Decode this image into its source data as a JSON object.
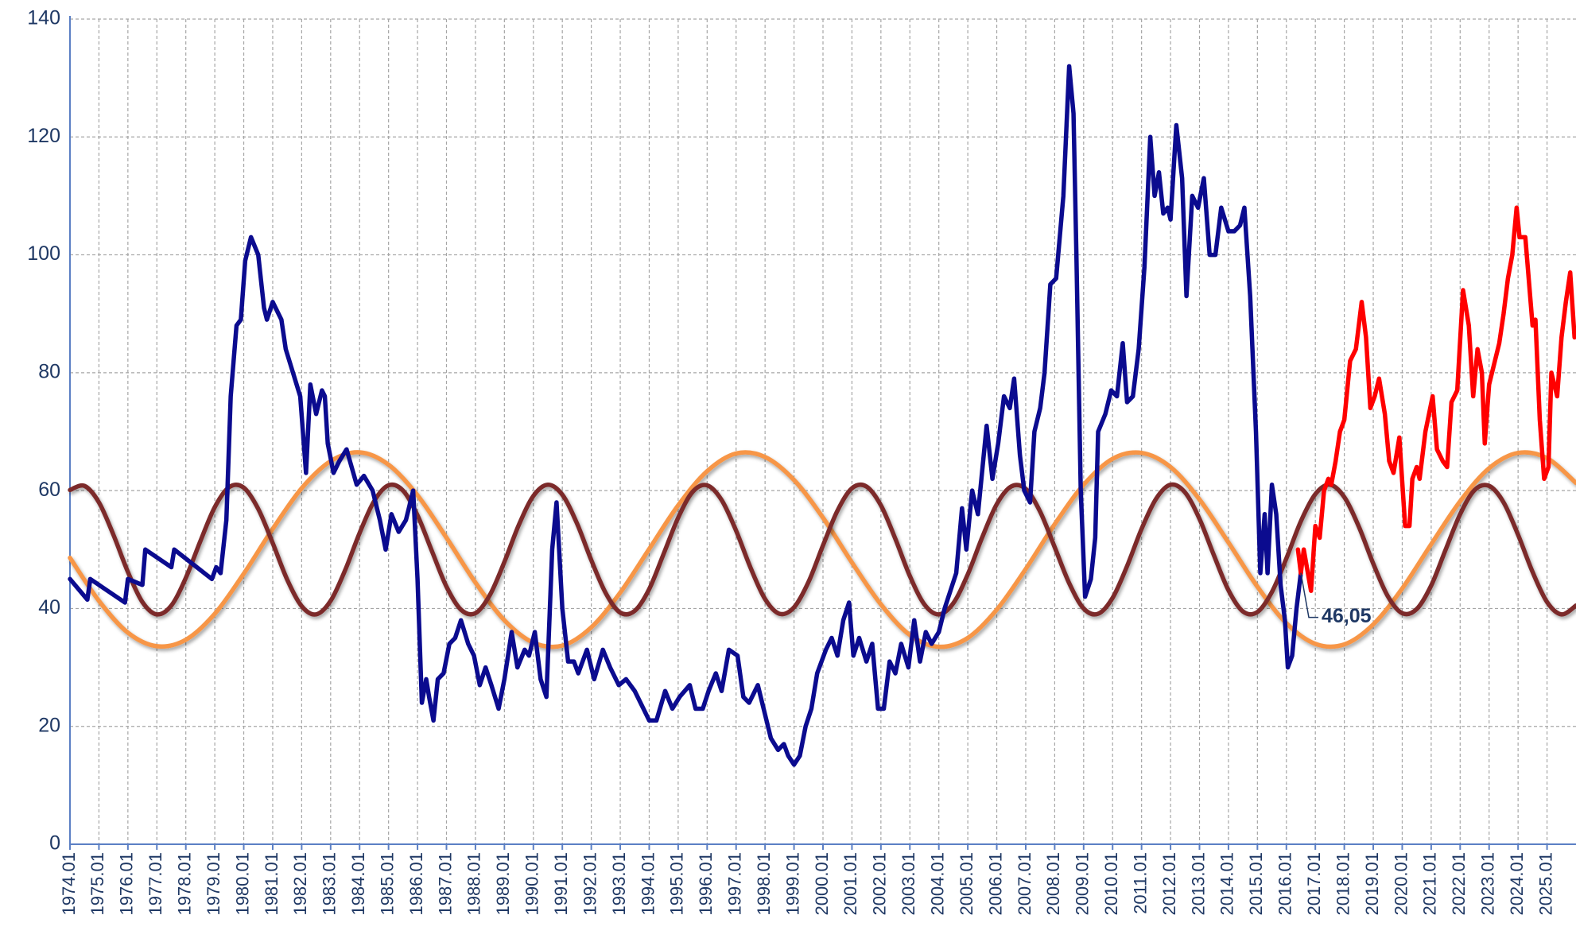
{
  "chart_data": {
    "type": "line",
    "xlim": [
      1974,
      2026
    ],
    "xticks": [
      {
        "value": 1974,
        "label": "1974.01"
      },
      {
        "value": 1975,
        "label": "1975.01"
      },
      {
        "value": 1976,
        "label": "1976.01"
      },
      {
        "value": 1977,
        "label": "1977.01"
      },
      {
        "value": 1978,
        "label": "1978.01"
      },
      {
        "value": 1979,
        "label": "1979.01"
      },
      {
        "value": 1980,
        "label": "1980.01"
      },
      {
        "value": 1981,
        "label": "1981.01"
      },
      {
        "value": 1982,
        "label": "1982.01"
      },
      {
        "value": 1983,
        "label": "1983.01"
      },
      {
        "value": 1984,
        "label": "1984.01"
      },
      {
        "value": 1985,
        "label": "1985.01"
      },
      {
        "value": 1986,
        "label": "1986.01"
      },
      {
        "value": 1987,
        "label": "1987.01"
      },
      {
        "value": 1988,
        "label": "1988.01"
      },
      {
        "value": 1989,
        "label": "1989.01"
      },
      {
        "value": 1990,
        "label": "1990.01"
      },
      {
        "value": 1991,
        "label": "1991.01"
      },
      {
        "value": 1992,
        "label": "1992.01"
      },
      {
        "value": 1993,
        "label": "1993.01"
      },
      {
        "value": 1994,
        "label": "1994.01"
      },
      {
        "value": 1995,
        "label": "1995.01"
      },
      {
        "value": 1996,
        "label": "1996.01"
      },
      {
        "value": 1997,
        "label": "1997.01"
      },
      {
        "value": 1998,
        "label": "1998.01"
      },
      {
        "value": 1999,
        "label": "1999.01"
      },
      {
        "value": 2000,
        "label": "2000.01"
      },
      {
        "value": 2001,
        "label": "2001.01"
      },
      {
        "value": 2002,
        "label": "2002.01"
      },
      {
        "value": 2003,
        "label": "2003.01"
      },
      {
        "value": 2004,
        "label": "2004.01"
      },
      {
        "value": 2005,
        "label": "2005.01"
      },
      {
        "value": 2006,
        "label": "2006.01"
      },
      {
        "value": 2007,
        "label": "2007.01"
      },
      {
        "value": 2008,
        "label": "2008.01"
      },
      {
        "value": 2009,
        "label": "2009.01"
      },
      {
        "value": 2010,
        "label": "2010.01"
      },
      {
        "value": 2011,
        "label": "2011.01"
      },
      {
        "value": 2012,
        "label": "2012.01"
      },
      {
        "value": 2013,
        "label": "2013.01"
      },
      {
        "value": 2014,
        "label": "2014.01"
      },
      {
        "value": 2015,
        "label": "2015.01"
      },
      {
        "value": 2016,
        "label": "2016.01"
      },
      {
        "value": 2017,
        "label": "2017.01"
      },
      {
        "value": 2018,
        "label": "2018.01"
      },
      {
        "value": 2019,
        "label": "2019.01"
      },
      {
        "value": 2020,
        "label": "2020.01"
      },
      {
        "value": 2021,
        "label": "2021.01"
      },
      {
        "value": 2022,
        "label": "2022.01"
      },
      {
        "value": 2023,
        "label": "2023.01"
      },
      {
        "value": 2024,
        "label": "2024.01"
      },
      {
        "value": 2025,
        "label": "2025.01"
      }
    ],
    "ylim": [
      0,
      140
    ],
    "yticks": [
      0,
      20,
      40,
      60,
      80,
      100,
      120,
      140
    ],
    "grid": true,
    "series": [
      {
        "color": "#f79646",
        "smooth": true,
        "x": [
          1974,
          1975,
          1976,
          1977,
          1978,
          1979,
          1980,
          1981,
          1982,
          1983,
          1984,
          1985,
          1986,
          1987,
          1988,
          1989,
          1990,
          1991,
          1992,
          1993,
          1994,
          1995,
          1996,
          1997,
          1998,
          1999,
          2000,
          2001,
          2002,
          2003,
          2004,
          2005,
          2006,
          2007,
          2008,
          2009,
          2010,
          2011,
          2012,
          2013,
          2014,
          2015,
          2016,
          2017,
          2018,
          2019,
          2020,
          2021,
          2022,
          2023,
          2024,
          2025,
          2026
        ],
        "values": [
          48.6,
          41.3,
          35.9,
          33.6,
          34.7,
          39.1,
          45.9,
          53.5,
          60.4,
          65.0,
          66.5,
          64.4,
          59.2,
          52.0,
          44.4,
          38.0,
          34.2,
          33.7,
          36.8,
          42.7,
          50.1,
          57.5,
          63.3,
          66.3,
          65.7,
          61.8,
          55.4,
          47.8,
          40.7,
          35.5,
          33.5,
          35.0,
          39.8,
          46.7,
          54.3,
          61.0,
          65.4,
          66.4,
          64.0,
          58.5,
          51.2,
          43.7,
          37.5,
          34.0,
          33.9,
          37.3,
          43.4,
          50.9,
          58.2,
          63.8,
          66.4,
          65.5,
          61.3
        ]
      },
      {
        "color": "#7b2c2c",
        "smooth": true,
        "x": [
          1974,
          1974.5,
          1975,
          1975.5,
          1976,
          1976.5,
          1977,
          1977.5,
          1978,
          1978.5,
          1979,
          1979.5,
          1980,
          1980.5,
          1981,
          1981.5,
          1982,
          1982.5,
          1983,
          1983.5,
          1984,
          1984.5,
          1985,
          1985.5,
          1986,
          1986.5,
          1987,
          1987.5,
          1988,
          1988.5,
          1989,
          1989.5,
          1990,
          1990.5,
          1991,
          1991.5,
          1992,
          1992.5,
          1993,
          1993.5,
          1994,
          1994.5,
          1995,
          1995.5,
          1996,
          1996.5,
          1997,
          1997.5,
          1998,
          1998.5,
          1999,
          1999.5,
          2000,
          2000.5,
          2001,
          2001.5,
          2002,
          2002.5,
          2003,
          2003.5,
          2004,
          2004.5,
          2005,
          2005.5,
          2006,
          2006.5,
          2007,
          2007.5,
          2008,
          2008.5,
          2009,
          2009.5,
          2010,
          2010.5,
          2011,
          2011.5,
          2012,
          2012.5,
          2013,
          2013.5,
          2014,
          2014.5,
          2015,
          2015.5,
          2016,
          2016.5,
          2017,
          2017.5,
          2018,
          2018.5,
          2019,
          2019.5,
          2020,
          2020.5,
          2021,
          2021.5,
          2022,
          2022.5,
          2023,
          2023.5,
          2024,
          2024.5,
          2025,
          2025.5,
          2026
        ],
        "values": [
          60.1,
          60.8,
          58.0,
          52.5,
          46.2,
          41.1,
          39.0,
          40.5,
          45.2,
          51.4,
          57.2,
          60.6,
          60.5,
          56.9,
          51.1,
          44.9,
          40.4,
          39.0,
          41.3,
          46.5,
          52.8,
          58.2,
          60.9,
          60.0,
          55.8,
          49.7,
          43.7,
          39.8,
          39.2,
          42.3,
          47.9,
          54.2,
          59.1,
          61.0,
          59.3,
          54.5,
          48.2,
          42.6,
          39.3,
          39.6,
          43.3,
          49.3,
          55.4,
          59.8,
          60.9,
          58.4,
          53.2,
          46.9,
          41.6,
          39.1,
          40.2,
          44.5,
          50.7,
          56.6,
          60.4,
          60.7,
          57.5,
          51.8,
          45.5,
          40.7,
          39.0,
          40.9,
          45.8,
          52.1,
          57.7,
          60.7,
          60.3,
          56.4,
          50.4,
          44.3,
          40.0,
          39.1,
          41.8,
          47.2,
          53.5,
          58.6,
          61.0,
          59.7,
          55.2,
          49.0,
          43.1,
          39.5,
          39.4,
          42.8,
          48.5,
          54.8,
          59.4,
          61.0,
          58.9,
          53.9,
          47.6,
          42.1,
          39.2,
          39.9,
          43.9,
          50.0,
          56.0,
          60.1,
          60.8,
          58.0,
          52.5,
          46.2,
          41.1,
          39.0,
          40.5
        ]
      },
      {
        "color": "#0b0b8f",
        "x": [
          1974.0,
          1974.6,
          1974.7,
          1975.9,
          1976.0,
          1976.5,
          1976.6,
          1977.5,
          1977.6,
          1978.9,
          1979.05,
          1979.2,
          1979.4,
          1979.55,
          1979.75,
          1979.9,
          1980.05,
          1980.25,
          1980.5,
          1980.7,
          1980.8,
          1981.0,
          1981.3,
          1981.45,
          1981.7,
          1981.95,
          1982.15,
          1982.3,
          1982.5,
          1982.7,
          1982.8,
          1982.9,
          1983.1,
          1983.3,
          1983.55,
          1983.9,
          1984.15,
          1984.45,
          1984.7,
          1984.9,
          1985.1,
          1985.35,
          1985.6,
          1985.85,
          1986.0,
          1986.15,
          1986.3,
          1986.4,
          1986.55,
          1986.7,
          1986.9,
          1987.1,
          1987.3,
          1987.5,
          1987.75,
          1987.95,
          1988.15,
          1988.35,
          1988.55,
          1988.8,
          1989.0,
          1989.25,
          1989.45,
          1989.7,
          1989.85,
          1990.05,
          1990.25,
          1990.45,
          1990.65,
          1990.8,
          1991.0,
          1991.2,
          1991.4,
          1991.55,
          1991.85,
          1992.1,
          1992.4,
          1992.65,
          1992.95,
          1993.2,
          1993.5,
          1993.8,
          1994.0,
          1994.25,
          1994.55,
          1994.8,
          1995.05,
          1995.4,
          1995.6,
          1995.85,
          1996.05,
          1996.3,
          1996.5,
          1996.75,
          1997.05,
          1997.25,
          1997.45,
          1997.75,
          1998.0,
          1998.2,
          1998.45,
          1998.65,
          1998.8,
          1999.0,
          1999.2,
          1999.4,
          1999.6,
          1999.8,
          2000.1,
          2000.3,
          2000.5,
          2000.7,
          2000.9,
          2001.05,
          2001.25,
          2001.5,
          2001.7,
          2001.9,
          2002.1,
          2002.3,
          2002.5,
          2002.7,
          2002.95,
          2003.15,
          2003.35,
          2003.55,
          2003.75,
          2004.0,
          2004.2,
          2004.4,
          2004.6,
          2004.8,
          2004.95,
          2005.15,
          2005.35,
          2005.65,
          2005.85,
          2006.05,
          2006.25,
          2006.45,
          2006.6,
          2006.8,
          2006.95,
          2007.15,
          2007.3,
          2007.5,
          2007.65,
          2007.85,
          2008.05,
          2008.3,
          2008.5,
          2008.65,
          2008.75,
          2008.9,
          2009.05,
          2009.25,
          2009.4,
          2009.5,
          2009.75,
          2009.95,
          2010.15,
          2010.35,
          2010.5,
          2010.7,
          2010.9,
          2011.1,
          2011.3,
          2011.45,
          2011.6,
          2011.75,
          2011.9,
          2012.0,
          2012.2,
          2012.4,
          2012.55,
          2012.75,
          2012.95,
          2013.15,
          2013.35,
          2013.55,
          2013.75,
          2014.0,
          2014.2,
          2014.4,
          2014.55,
          2014.75,
          2014.95,
          2015.1,
          2015.25,
          2015.35,
          2015.5,
          2015.65,
          2015.8,
          2015.95,
          2016.05,
          2016.2,
          2016.35,
          2016.5
        ],
        "values": [
          45,
          41.5,
          45,
          41,
          45,
          44,
          50,
          47,
          50,
          45,
          47,
          46,
          55,
          76,
          88,
          89,
          99,
          103,
          100,
          91,
          89,
          92,
          89,
          84,
          80,
          76,
          63,
          78,
          73,
          77,
          76,
          68,
          63,
          65,
          67,
          61,
          62.5,
          60,
          55,
          50,
          56,
          53,
          55,
          60,
          45,
          24,
          28,
          25,
          21,
          28,
          29,
          34,
          35,
          38,
          34,
          32,
          27,
          30,
          27,
          23,
          28,
          36,
          30,
          33,
          32,
          36,
          28,
          25,
          50,
          58,
          40,
          31,
          31,
          29,
          33,
          28,
          33,
          30,
          27,
          28,
          26,
          23,
          21,
          21,
          26,
          23,
          25,
          27,
          23,
          23,
          26,
          29,
          26,
          33,
          32,
          25,
          24,
          27,
          22,
          18,
          16,
          17,
          15,
          13.5,
          15,
          20,
          23,
          29,
          33,
          35,
          32,
          38,
          41,
          32,
          35,
          31,
          34,
          23,
          23,
          31,
          29,
          34,
          30,
          38,
          31,
          36,
          34,
          36,
          40,
          43,
          46,
          57,
          50,
          60,
          56,
          71,
          62,
          68,
          76,
          74,
          79,
          66,
          60,
          58,
          70,
          74,
          80,
          95,
          96,
          110,
          132,
          124,
          100,
          60,
          42,
          45,
          52,
          70,
          73,
          77,
          76,
          85,
          75,
          76,
          84,
          98,
          120,
          110,
          114,
          107,
          108,
          106,
          122,
          113,
          93,
          110,
          108,
          113,
          100,
          100,
          108,
          104,
          104,
          105,
          108,
          93,
          70,
          46,
          56,
          46,
          61,
          56,
          44,
          38,
          30,
          32,
          40,
          46.05
        ]
      },
      {
        "color": "#ff0000",
        "x": [
          2016.4,
          2016.5,
          2016.6,
          2016.85,
          2017.0,
          2017.15,
          2017.3,
          2017.45,
          2017.55,
          2017.7,
          2017.85,
          2018.0,
          2018.2,
          2018.4,
          2018.6,
          2018.75,
          2018.9,
          2019.05,
          2019.2,
          2019.4,
          2019.55,
          2019.7,
          2019.9,
          2020.1,
          2020.25,
          2020.35,
          2020.5,
          2020.6,
          2020.8,
          2021.05,
          2021.2,
          2021.4,
          2021.55,
          2021.7,
          2021.9,
          2022.1,
          2022.3,
          2022.45,
          2022.6,
          2022.75,
          2022.85,
          2023.0,
          2023.2,
          2023.35,
          2023.5,
          2023.65,
          2023.8,
          2023.95,
          2024.05,
          2024.25,
          2024.5,
          2024.6,
          2024.75,
          2024.9,
          2025.05,
          2025.15,
          2025.35,
          2025.5,
          2025.65,
          2025.8,
          2025.95
        ],
        "values": [
          50,
          46,
          50,
          43,
          54,
          52,
          60,
          62,
          61,
          65,
          70,
          72,
          82,
          84,
          92,
          86,
          74,
          76,
          79,
          73,
          65,
          63,
          69,
          54,
          54,
          62,
          64,
          62,
          70,
          76,
          67,
          65,
          64,
          75,
          77,
          94,
          88,
          76,
          84,
          80,
          68,
          78,
          82,
          85,
          90,
          96,
          100,
          108,
          103,
          103,
          88,
          89,
          72,
          62,
          64,
          80,
          76,
          86,
          92,
          97,
          86
        ]
      }
    ],
    "annotations": [
      {
        "text": "46,05",
        "x": 2016.5,
        "y": 46.05
      }
    ]
  }
}
